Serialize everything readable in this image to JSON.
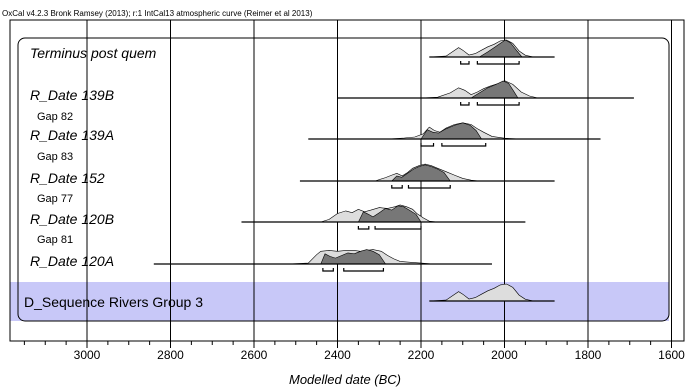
{
  "header": {
    "text": "OxCal v4.2.3 Bronk Ramsey (2013); r:1 IntCal13 atmospheric curve (Reimer et al 2013)"
  },
  "colors": {
    "prior_fill": "#dddddd",
    "posterior_fill": "#777777",
    "band_fill": "#c8c8f8",
    "line": "#000000",
    "grid": "#000000"
  },
  "chart_data": {
    "type": "area",
    "title": "",
    "xlabel": "Modelled date (BC)",
    "ylabel": "",
    "xlim": [
      3150,
      1600
    ],
    "x_reversed": true,
    "ticks_major": [
      3000,
      2800,
      2600,
      2400,
      2200,
      2000,
      1800,
      1600
    ],
    "minor_tick_step": 50,
    "grid": true,
    "rows": [
      {
        "label": "Terminus post quem",
        "kind": "main",
        "range_line": [
          2180,
          1880
        ],
        "prior": [
          [
            2180,
            0
          ],
          [
            2140,
            0.05
          ],
          [
            2125,
            0.3
          ],
          [
            2110,
            0.55
          ],
          [
            2100,
            0.4
          ],
          [
            2085,
            0.12
          ],
          [
            2070,
            0.2
          ],
          [
            2055,
            0.4
          ],
          [
            2040,
            0.6
          ],
          [
            2025,
            0.75
          ],
          [
            2010,
            0.95
          ],
          [
            1995,
            1.0
          ],
          [
            1980,
            0.8
          ],
          [
            1965,
            0.35
          ],
          [
            1950,
            0.1
          ],
          [
            1930,
            0
          ]
        ],
        "posterior": [
          [
            2060,
            0
          ],
          [
            2040,
            0.3
          ],
          [
            2025,
            0.55
          ],
          [
            2010,
            0.8
          ],
          [
            1998,
            1.0
          ],
          [
            1985,
            0.82
          ],
          [
            1970,
            0.35
          ],
          [
            1958,
            0
          ]
        ],
        "brackets": [
          [
            2105,
            2085
          ],
          [
            2065,
            1965
          ]
        ]
      },
      {
        "label": "R_Date 139B",
        "kind": "main",
        "range_line": [
          2400,
          1690
        ],
        "prior": [
          [
            2200,
            0
          ],
          [
            2160,
            0.05
          ],
          [
            2130,
            0.3
          ],
          [
            2110,
            0.6
          ],
          [
            2095,
            0.45
          ],
          [
            2080,
            0.2
          ],
          [
            2065,
            0.35
          ],
          [
            2050,
            0.55
          ],
          [
            2035,
            0.7
          ],
          [
            2015,
            0.85
          ],
          [
            1998,
            1.0
          ],
          [
            1980,
            0.8
          ],
          [
            1960,
            0.35
          ],
          [
            1940,
            0.12
          ],
          [
            1920,
            0
          ]
        ],
        "posterior": [
          [
            2080,
            0
          ],
          [
            2060,
            0.3
          ],
          [
            2040,
            0.6
          ],
          [
            2020,
            0.8
          ],
          [
            2003,
            1.0
          ],
          [
            1990,
            0.85
          ],
          [
            1978,
            0.4
          ],
          [
            1968,
            0
          ]
        ],
        "brackets": [
          [
            2105,
            2085
          ],
          [
            2065,
            1965
          ]
        ]
      },
      {
        "label": "Gap 82",
        "kind": "gap"
      },
      {
        "label": "R_Date 139A",
        "kind": "main",
        "range_line": [
          2470,
          1770
        ],
        "prior": [
          [
            2280,
            0
          ],
          [
            2240,
            0.06
          ],
          [
            2215,
            0.12
          ],
          [
            2195,
            0.3
          ],
          [
            2180,
            0.7
          ],
          [
            2168,
            0.5
          ],
          [
            2155,
            0.4
          ],
          [
            2140,
            0.65
          ],
          [
            2120,
            0.85
          ],
          [
            2100,
            0.95
          ],
          [
            2080,
            0.85
          ],
          [
            2065,
            0.6
          ],
          [
            2050,
            0.4
          ],
          [
            2030,
            0.15
          ],
          [
            2000,
            0.05
          ],
          [
            1960,
            0
          ]
        ],
        "posterior": [
          [
            2200,
            0
          ],
          [
            2185,
            0.55
          ],
          [
            2172,
            0.4
          ],
          [
            2158,
            0.35
          ],
          [
            2140,
            0.6
          ],
          [
            2120,
            0.8
          ],
          [
            2100,
            0.95
          ],
          [
            2082,
            0.8
          ],
          [
            2068,
            0.5
          ],
          [
            2055,
            0
          ]
        ],
        "brackets": [
          [
            2200,
            2170
          ],
          [
            2150,
            2045
          ]
        ]
      },
      {
        "label": "Gap 83",
        "kind": "gap"
      },
      {
        "label": "R_Date 152",
        "kind": "main",
        "range_line": [
          2490,
          1880
        ],
        "prior": [
          [
            2310,
            0
          ],
          [
            2285,
            0.2
          ],
          [
            2270,
            0.35
          ],
          [
            2258,
            0.45
          ],
          [
            2245,
            0.3
          ],
          [
            2232,
            0.5
          ],
          [
            2220,
            0.75
          ],
          [
            2205,
            0.9
          ],
          [
            2190,
            1.0
          ],
          [
            2175,
            0.9
          ],
          [
            2160,
            0.75
          ],
          [
            2140,
            0.55
          ],
          [
            2120,
            0.35
          ],
          [
            2100,
            0.15
          ],
          [
            2080,
            0.05
          ],
          [
            2060,
            0
          ]
        ],
        "posterior": [
          [
            2270,
            0
          ],
          [
            2258,
            0.3
          ],
          [
            2246,
            0.22
          ],
          [
            2232,
            0.45
          ],
          [
            2218,
            0.7
          ],
          [
            2205,
            0.85
          ],
          [
            2190,
            0.95
          ],
          [
            2175,
            0.85
          ],
          [
            2160,
            0.7
          ],
          [
            2145,
            0.5
          ],
          [
            2130,
            0
          ]
        ],
        "brackets": [
          [
            2270,
            2245
          ],
          [
            2230,
            2130
          ]
        ]
      },
      {
        "label": "Gap 77",
        "kind": "gap"
      },
      {
        "label": "R_Date 120B",
        "kind": "main",
        "range_line": [
          2630,
          1950
        ],
        "prior": [
          [
            2440,
            0
          ],
          [
            2420,
            0.15
          ],
          [
            2400,
            0.5
          ],
          [
            2380,
            0.65
          ],
          [
            2365,
            0.55
          ],
          [
            2350,
            0.75
          ],
          [
            2335,
            0.6
          ],
          [
            2320,
            0.7
          ],
          [
            2300,
            0.85
          ],
          [
            2280,
            0.8
          ],
          [
            2262,
            0.9
          ],
          [
            2250,
            1.0
          ],
          [
            2235,
            0.9
          ],
          [
            2220,
            0.75
          ],
          [
            2210,
            0.5
          ],
          [
            2195,
            0.25
          ],
          [
            2180,
            0.05
          ],
          [
            2160,
            0
          ]
        ],
        "posterior": [
          [
            2350,
            0
          ],
          [
            2338,
            0.6
          ],
          [
            2326,
            0.45
          ],
          [
            2315,
            0.3
          ],
          [
            2300,
            0.55
          ],
          [
            2285,
            0.8
          ],
          [
            2270,
            0.7
          ],
          [
            2255,
            0.95
          ],
          [
            2242,
            0.9
          ],
          [
            2228,
            0.7
          ],
          [
            2212,
            0.45
          ],
          [
            2200,
            0
          ]
        ],
        "brackets": [
          [
            2350,
            2325
          ],
          [
            2310,
            2200
          ]
        ]
      },
      {
        "label": "Gap 81",
        "kind": "gap"
      },
      {
        "label": "R_Date 120A",
        "kind": "main",
        "range_line": [
          2840,
          2030
        ],
        "prior": [
          [
            2520,
            0
          ],
          [
            2470,
            0.05
          ],
          [
            2450,
            0.55
          ],
          [
            2440,
            0.75
          ],
          [
            2420,
            0.8
          ],
          [
            2400,
            0.75
          ],
          [
            2380,
            0.8
          ],
          [
            2360,
            0.8
          ],
          [
            2345,
            0.75
          ],
          [
            2330,
            0.8
          ],
          [
            2315,
            0.85
          ],
          [
            2295,
            0.75
          ],
          [
            2280,
            0.5
          ],
          [
            2265,
            0.3
          ],
          [
            2250,
            0.15
          ],
          [
            2225,
            0.1
          ],
          [
            2200,
            0.05
          ],
          [
            2170,
            0
          ]
        ],
        "posterior": [
          [
            2440,
            0
          ],
          [
            2430,
            0.6
          ],
          [
            2418,
            0.45
          ],
          [
            2405,
            0.35
          ],
          [
            2390,
            0.5
          ],
          [
            2375,
            0.65
          ],
          [
            2360,
            0.6
          ],
          [
            2345,
            0.75
          ],
          [
            2330,
            0.85
          ],
          [
            2315,
            0.75
          ],
          [
            2300,
            0.55
          ],
          [
            2285,
            0
          ]
        ],
        "brackets": [
          [
            2435,
            2410
          ],
          [
            2385,
            2290
          ]
        ]
      }
    ],
    "dsequence": {
      "label": "D_Sequence Rivers Group 3",
      "range_line": [
        2180,
        1880
      ],
      "prior": [
        [
          2180,
          0
        ],
        [
          2140,
          0.05
        ],
        [
          2125,
          0.3
        ],
        [
          2110,
          0.55
        ],
        [
          2100,
          0.4
        ],
        [
          2085,
          0.12
        ],
        [
          2070,
          0.2
        ],
        [
          2055,
          0.4
        ],
        [
          2040,
          0.6
        ],
        [
          2025,
          0.75
        ],
        [
          2010,
          0.95
        ],
        [
          1995,
          1.0
        ],
        [
          1980,
          0.8
        ],
        [
          1965,
          0.35
        ],
        [
          1950,
          0.1
        ],
        [
          1930,
          0
        ]
      ]
    }
  }
}
